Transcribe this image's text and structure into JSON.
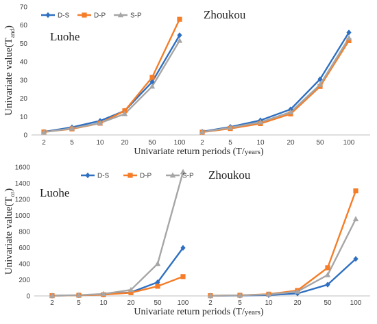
{
  "chart_data": [
    {
      "type": "line",
      "ylabel": "Univariate value(T",
      "ylabel_subscript": "and",
      "ylabel_close": ")",
      "xlabel": "Univariate return periods (T/",
      "xlabel_unit": "years",
      "xlabel_close": ")",
      "ylim": [
        0,
        70
      ],
      "yticks": [
        0,
        10,
        20,
        30,
        40,
        50,
        60,
        70
      ],
      "grid": false,
      "legend": "top-left",
      "groups": [
        {
          "label": "Luohe",
          "categories": [
            "2",
            "5",
            "10",
            "20",
            "50",
            "100"
          ],
          "series": [
            {
              "name": "D-S",
              "values": [
                1.7,
                4.2,
                7.7,
                13.2,
                29.0,
                54.5
              ]
            },
            {
              "name": "D-P",
              "values": [
                1.6,
                3.3,
                6.4,
                13.2,
                31.5,
                63.2
              ]
            },
            {
              "name": "S-P",
              "values": [
                1.5,
                3.6,
                6.5,
                11.5,
                26.5,
                51.5
              ]
            }
          ]
        },
        {
          "label": "Zhoukou",
          "categories": [
            "2",
            "5",
            "10",
            "20",
            "50",
            "100"
          ],
          "series": [
            {
              "name": "D-S",
              "values": [
                1.8,
                4.4,
                8.0,
                14.0,
                30.5,
                56.0
              ]
            },
            {
              "name": "D-P",
              "values": [
                1.5,
                3.5,
                6.2,
                11.5,
                26.5,
                51.5
              ]
            },
            {
              "name": "S-P",
              "values": [
                1.6,
                4.0,
                7.0,
                12.5,
                27.5,
                53.0
              ]
            }
          ]
        }
      ]
    },
    {
      "type": "line",
      "ylabel": "Univariate value(T",
      "ylabel_subscript": "or",
      "ylabel_close": ")",
      "xlabel": "Univariate return periods (T/",
      "xlabel_unit": "years",
      "xlabel_close": ")",
      "ylim": [
        0,
        1600
      ],
      "yticks": [
        0,
        200,
        400,
        600,
        800,
        1000,
        1200,
        1400,
        1600
      ],
      "grid": false,
      "legend": "top",
      "groups": [
        {
          "label": "Luohe",
          "categories": [
            "2",
            "5",
            "10",
            "20",
            "50",
            "100"
          ],
          "series": [
            {
              "name": "D-S",
              "values": [
                3,
                8,
                17,
                45,
                170,
                597
              ]
            },
            {
              "name": "D-P",
              "values": [
                3,
                8,
                15,
                40,
                120,
                240
              ]
            },
            {
              "name": "S-P",
              "values": [
                4,
                10,
                25,
                75,
                400,
                1540
              ]
            }
          ]
        },
        {
          "label": "Zhoukou",
          "categories": [
            "2",
            "5",
            "10",
            "20",
            "50",
            "100"
          ],
          "series": [
            {
              "name": "D-S",
              "values": [
                2,
                5,
                10,
                30,
                140,
                460
              ]
            },
            {
              "name": "D-P",
              "values": [
                3,
                8,
                22,
                68,
                350,
                1305
              ]
            },
            {
              "name": "S-P",
              "values": [
                3,
                8,
                18,
                55,
                260,
                955
              ]
            }
          ]
        }
      ]
    }
  ],
  "colors": {
    "D-S": "#2e6fc1",
    "D-P": "#f57d28",
    "S-P": "#a6a6a6"
  },
  "markers": {
    "D-S": "diamond",
    "D-P": "square",
    "S-P": "triangle"
  }
}
